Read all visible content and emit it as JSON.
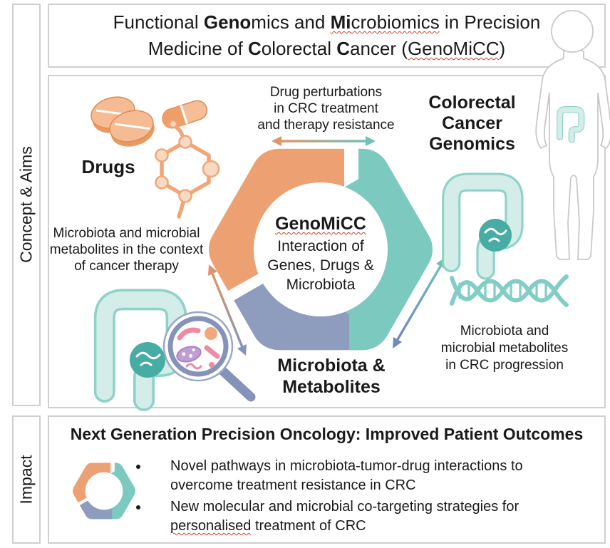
{
  "sidebar": {
    "concept_label": "Concept & Aims",
    "impact_label": "Impact"
  },
  "title": {
    "segments": [
      {
        "t": "Functional "
      },
      {
        "t": "Geno",
        "b": true
      },
      {
        "t": "mics and "
      },
      {
        "t": "Mi",
        "b": true,
        "u": true
      },
      {
        "t": "crobiomics",
        "u": true
      },
      {
        "t": " in Precision"
      },
      {
        "br": true
      },
      {
        "t": "Medicine of "
      },
      {
        "t": "C",
        "b": true
      },
      {
        "t": "olorectal "
      },
      {
        "t": "C",
        "b": true
      },
      {
        "t": "ancer ("
      },
      {
        "t": "GenoMiCC",
        "u": true
      },
      {
        "t": ")"
      }
    ]
  },
  "concept": {
    "drugs_label": "Drugs",
    "top_annotation": "Drug perturbations\nin CRC treatment\nand therapy resistance",
    "genomics_label": "Colorectal\nCancer\nGenomics",
    "left_annotation": "Microbiota and microbial\nmetabolites in the context\nof cancer therapy",
    "right_annotation": "Microbiota and\nmicrobial metabolites\nin CRC progression",
    "microbiota_label": "Microbiota &\nMetabolites",
    "hex_center": {
      "name_segments": [
        {
          "t": "GenoMiCC",
          "u": true
        }
      ],
      "subtitle": "Interaction of\nGenes, Drugs &\nMicrobiota"
    }
  },
  "impact": {
    "heading": "Next Generation Precision Oncology: Improved Patient Outcomes",
    "bullets": [
      {
        "segments": [
          {
            "t": "Novel pathways in microbiota-tumor-drug interactions to"
          },
          {
            "br": true
          },
          {
            "t": "overcome treatment resistance in CRC"
          }
        ]
      },
      {
        "segments": [
          {
            "t": "New molecular and microbial co-targeting strategies for"
          },
          {
            "br": true
          },
          {
            "t": "personalised",
            "u": true
          },
          {
            "t": " treatment of CRC"
          }
        ]
      }
    ]
  },
  "icons": [
    "pills-icon",
    "capsule-icon",
    "molecule-icon",
    "hexagon-cycle-icon",
    "colon-tumor-icon",
    "magnifier-microbes-icon",
    "dna-helix-icon",
    "human-body-icon",
    "hexagon-cycle-small-icon",
    "double-arrow-icon"
  ],
  "colors": {
    "orange": "#EDA173",
    "teal": "#7CC9C0",
    "slate": "#8E9CBE",
    "arrow_orange": "#E0946B",
    "arrow_teal": "#6FC0B8",
    "arrow_blue": "#7289BC",
    "colon_fill": "#D4EDE9",
    "colon_outline": "#8FD2C9",
    "tumor": "#47ACA4",
    "squiggle_red": "#D13A2A",
    "border_gray": "#CFCFCF"
  }
}
